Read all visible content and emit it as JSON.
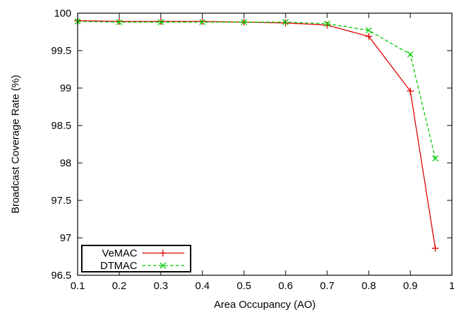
{
  "chart_data": {
    "type": "line",
    "title": "",
    "xlabel": "Area Occupancy (AO)",
    "ylabel": "Broadcast Coverage Rate (%)",
    "xlim": [
      0.1,
      1
    ],
    "ylim": [
      96.5,
      100
    ],
    "x_ticks": [
      0.1,
      0.2,
      0.3,
      0.4,
      0.5,
      0.6,
      0.7,
      0.8,
      0.9,
      1
    ],
    "x_tick_labels": [
      "0.1",
      "0.2",
      "0.3",
      "0.4",
      "0.5",
      "0.6",
      "0.7",
      "0.8",
      "0.9",
      "1"
    ],
    "y_ticks": [
      96.5,
      97,
      97.5,
      98,
      98.5,
      99,
      99.5,
      100
    ],
    "y_tick_labels": [
      "96.5",
      "97",
      "97.5",
      "98",
      "98.5",
      "99",
      "99.5",
      "100"
    ],
    "grid": false,
    "legend_position": "bottom-left",
    "series": [
      {
        "name": "VeMAC",
        "color": "#dd0000",
        "dash": "solid",
        "marker": "plus",
        "x": [
          0.1,
          0.2,
          0.3,
          0.4,
          0.5,
          0.6,
          0.7,
          0.8,
          0.9,
          0.96
        ],
        "y": [
          99.9,
          99.89,
          99.89,
          99.89,
          99.88,
          99.87,
          99.84,
          99.69,
          98.96,
          96.86
        ]
      },
      {
        "name": "DTMAC",
        "color": "#00cc00",
        "dash": "dashed",
        "marker": "x",
        "x": [
          0.1,
          0.2,
          0.3,
          0.4,
          0.5,
          0.6,
          0.7,
          0.8,
          0.9,
          0.96
        ],
        "y": [
          99.89,
          99.88,
          99.88,
          99.88,
          99.88,
          99.88,
          99.86,
          99.77,
          99.45,
          98.06
        ]
      }
    ]
  }
}
